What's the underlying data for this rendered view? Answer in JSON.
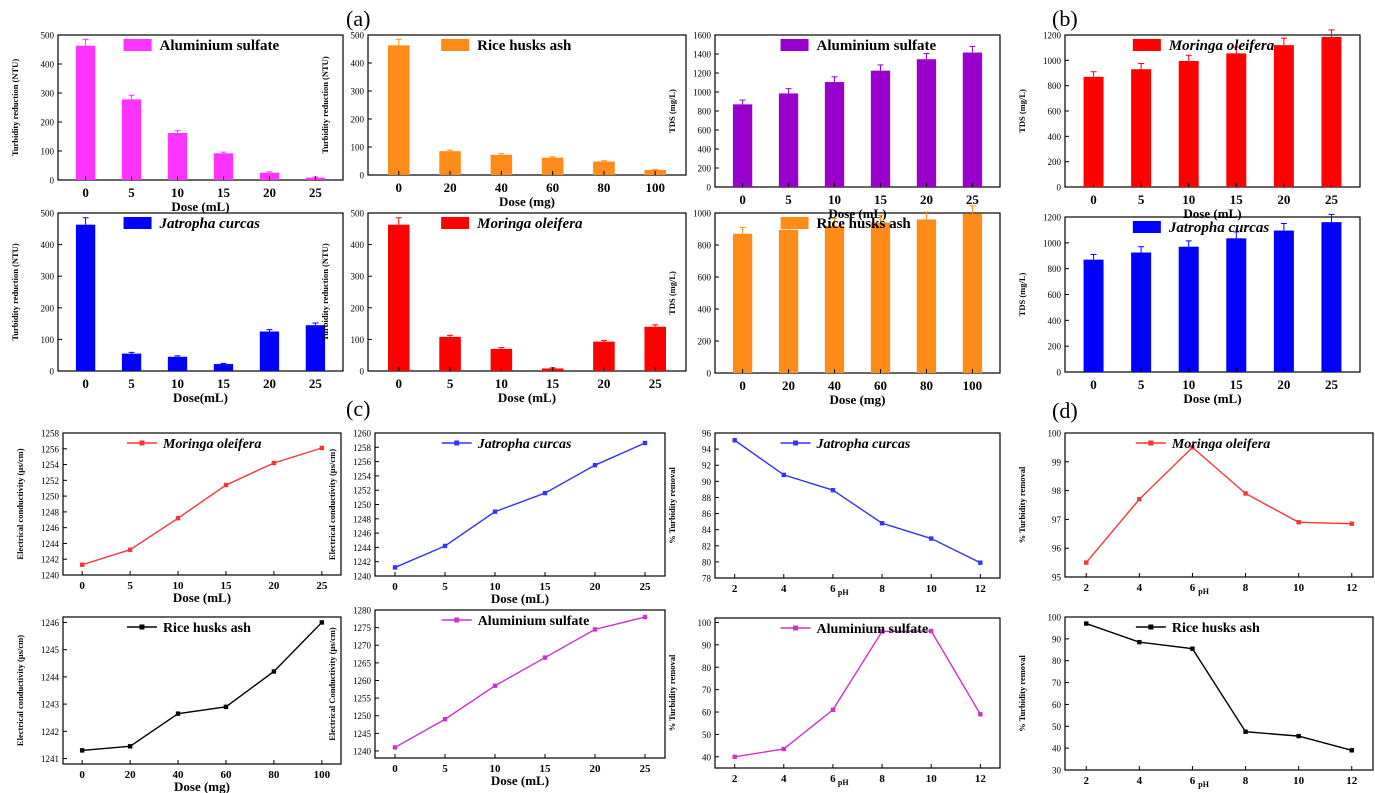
{
  "panel_labels": [
    "(a)",
    "(b)",
    "(c)",
    "(d)"
  ],
  "chart_data": [
    {
      "type": "bar",
      "color": "#ff33ff",
      "legend": "Aluminium sulfate",
      "legend_italic": false,
      "ylabel": "Turbidity reduction (NTU)",
      "xlabel": "Dose (mL)",
      "categories": [
        "0",
        "5",
        "10",
        "15",
        "20",
        "25"
      ],
      "values": [
        463,
        278,
        162,
        92,
        25,
        8
      ],
      "errors": [
        22,
        14,
        8,
        4,
        3,
        2
      ],
      "ylim": [
        0,
        500
      ],
      "yticks": [
        0,
        100,
        200,
        300,
        400,
        500
      ]
    },
    {
      "type": "bar",
      "color": "#ff8c1a",
      "legend": "Rice husks ash",
      "legend_italic": false,
      "ylabel": "Turbidity reduction (NTU)",
      "xlabel": "Dose (mg)",
      "categories": [
        "0",
        "20",
        "40",
        "60",
        "80",
        "100"
      ],
      "values": [
        463,
        85,
        72,
        62,
        48,
        18
      ],
      "errors": [
        22,
        4,
        4,
        3,
        3,
        2
      ],
      "ylim": [
        0,
        500
      ],
      "yticks": [
        0,
        100,
        200,
        300,
        400,
        500
      ]
    },
    {
      "type": "bar",
      "color": "#9900cc",
      "legend": "Aluminium sulfate",
      "legend_italic": false,
      "ylabel": "TDS (mg/L)",
      "xlabel": "Dose (mL)",
      "categories": [
        "0",
        "5",
        "10",
        "15",
        "20",
        "25"
      ],
      "values": [
        870,
        985,
        1105,
        1225,
        1345,
        1415
      ],
      "errors": [
        45,
        50,
        55,
        60,
        60,
        65
      ],
      "ylim": [
        0,
        1600
      ],
      "yticks": [
        0,
        200,
        400,
        600,
        800,
        1000,
        1200,
        1400,
        1600
      ]
    },
    {
      "type": "bar",
      "color": "#ff0000",
      "legend": "Moringa oleifera",
      "legend_italic": true,
      "ylabel": "TDS (mg/L)",
      "xlabel": "Dose (mL)",
      "categories": [
        "0",
        "5",
        "10",
        "15",
        "20",
        "25"
      ],
      "values": [
        870,
        930,
        995,
        1055,
        1120,
        1185
      ],
      "errors": [
        40,
        45,
        45,
        50,
        55,
        55
      ],
      "ylim": [
        0,
        1200
      ],
      "yticks": [
        0,
        200,
        400,
        600,
        800,
        1000,
        1200
      ]
    },
    {
      "type": "bar",
      "color": "#0000ff",
      "legend": "Jatropha curcas",
      "legend_italic": true,
      "ylabel": "Turbidity reduction (NTU)",
      "xlabel": "Dose(mL)",
      "categories": [
        "0",
        "5",
        "10",
        "15",
        "20",
        "25"
      ],
      "values": [
        463,
        55,
        45,
        22,
        125,
        145
      ],
      "errors": [
        22,
        4,
        3,
        2,
        6,
        7
      ],
      "ylim": [
        0,
        500
      ],
      "yticks": [
        0,
        100,
        200,
        300,
        400,
        500
      ]
    },
    {
      "type": "bar",
      "color": "#ff0000",
      "legend": "Moringa oleifera",
      "legend_italic": true,
      "ylabel": "Turbidity reduction (NTU)",
      "xlabel": "Dose (mL)",
      "categories": [
        "0",
        "5",
        "10",
        "15",
        "20",
        "25"
      ],
      "values": [
        463,
        108,
        70,
        8,
        93,
        140
      ],
      "errors": [
        22,
        5,
        4,
        2,
        4,
        6
      ],
      "ylim": [
        0,
        500
      ],
      "yticks": [
        0,
        100,
        200,
        300,
        400,
        500
      ]
    },
    {
      "type": "bar",
      "color": "#ff8c1a",
      "legend": "Rice husks ash",
      "legend_italic": false,
      "ylabel": "TDS (mg/L)",
      "xlabel": "Dose (mg)",
      "categories": [
        "0",
        "20",
        "40",
        "60",
        "80",
        "100"
      ],
      "values": [
        870,
        895,
        920,
        940,
        960,
        995
      ],
      "errors": [
        40,
        45,
        45,
        45,
        45,
        50
      ],
      "ylim": [
        0,
        1000
      ],
      "yticks": [
        0,
        200,
        400,
        600,
        800,
        1000
      ]
    },
    {
      "type": "bar",
      "color": "#0000ff",
      "legend": "Jatropha curcas",
      "legend_italic": true,
      "ylabel": "TDS (mg/L)",
      "xlabel": "Dose (mL)",
      "categories": [
        "0",
        "5",
        "10",
        "15",
        "20",
        "25"
      ],
      "values": [
        870,
        925,
        970,
        1035,
        1095,
        1160
      ],
      "errors": [
        40,
        45,
        45,
        50,
        55,
        60
      ],
      "ylim": [
        0,
        1200
      ],
      "yticks": [
        0,
        200,
        400,
        600,
        800,
        1000,
        1200
      ]
    },
    {
      "type": "line",
      "color": "#ff3333",
      "legend": "Moringa oleifera",
      "legend_italic": true,
      "ylabel": "Electrical conductivity (µs/cm)",
      "xlabel": "Dose (mL)",
      "x": [
        0,
        5,
        10,
        15,
        20,
        25
      ],
      "y": [
        1241.3,
        1243.2,
        1247.2,
        1251.4,
        1254.2,
        1256.1
      ],
      "xlim": [
        -2,
        27
      ],
      "xticks": [
        0,
        5,
        10,
        15,
        20,
        25
      ],
      "ylim": [
        1240,
        1258
      ],
      "yticks": [
        1240,
        1242,
        1244,
        1246,
        1248,
        1250,
        1252,
        1254,
        1256,
        1258
      ]
    },
    {
      "type": "line",
      "color": "#3333ff",
      "legend": "Jatropha curcas",
      "legend_italic": true,
      "ylabel": "Electrical conductivity (µs/cm)",
      "xlabel": "Dose (mL)",
      "x": [
        0,
        5,
        10,
        15,
        20,
        25
      ],
      "y": [
        1241.2,
        1244.2,
        1249.0,
        1251.6,
        1255.5,
        1258.6
      ],
      "xlim": [
        -2,
        27
      ],
      "xticks": [
        0,
        5,
        10,
        15,
        20,
        25
      ],
      "ylim": [
        1240,
        1260
      ],
      "yticks": [
        1240,
        1242,
        1244,
        1246,
        1248,
        1250,
        1252,
        1254,
        1256,
        1258,
        1260
      ]
    },
    {
      "type": "line",
      "color": "#3333ff",
      "legend": "Jatropha curcas",
      "legend_italic": true,
      "ylabel": "% Turbidity removal",
      "xlabel": "pH",
      "x": [
        2,
        4,
        6,
        8,
        10,
        12
      ],
      "y": [
        95.1,
        90.8,
        88.9,
        84.8,
        82.9,
        79.9
      ],
      "xlim": [
        1.2,
        12.8
      ],
      "xticks": [
        2,
        4,
        6,
        8,
        10,
        12
      ],
      "ylim": [
        78,
        96
      ],
      "yticks": [
        78,
        80,
        82,
        84,
        86,
        88,
        90,
        92,
        94,
        96
      ]
    },
    {
      "type": "line",
      "color": "#ff3333",
      "legend": "Moringa oleifera",
      "legend_italic": true,
      "ylabel": "% Turbidity removal",
      "xlabel": "pH",
      "x": [
        2,
        4,
        6,
        8,
        10,
        12
      ],
      "y": [
        95.5,
        97.7,
        99.5,
        97.9,
        96.9,
        96.85
      ],
      "xlim": [
        1.2,
        12.8
      ],
      "xticks": [
        2,
        4,
        6,
        8,
        10,
        12
      ],
      "ylim": [
        95,
        100
      ],
      "yticks": [
        95,
        96,
        97,
        98,
        99,
        100
      ]
    },
    {
      "type": "line",
      "color": "#000000",
      "legend": "Rice husks ash",
      "legend_italic": false,
      "ylabel": "Electrical conductivity (µs/cm)",
      "xlabel": "Dose (mg)",
      "x": [
        0,
        20,
        40,
        60,
        80,
        100
      ],
      "y": [
        1241.3,
        1241.45,
        1242.65,
        1242.9,
        1244.2,
        1246.0
      ],
      "xlim": [
        -8,
        108
      ],
      "xticks": [
        0,
        20,
        40,
        60,
        80,
        100
      ],
      "ylim": [
        1240.8,
        1246.2
      ],
      "yticks": [
        1241,
        1242,
        1243,
        1244,
        1245,
        1246
      ]
    },
    {
      "type": "line",
      "color": "#cc33cc",
      "legend": "Aluminium sulfate",
      "legend_italic": false,
      "ylabel": "Electrical Conductivity (µs/cm)",
      "xlabel": "Dose (mL)",
      "x": [
        0,
        5,
        10,
        15,
        20,
        25
      ],
      "y": [
        1241,
        1249,
        1258.5,
        1266.5,
        1274.5,
        1278
      ],
      "xlim": [
        -2,
        27
      ],
      "xticks": [
        0,
        5,
        10,
        15,
        20,
        25
      ],
      "ylim": [
        1238,
        1280
      ],
      "yticks": [
        1240,
        1245,
        1250,
        1255,
        1260,
        1265,
        1270,
        1275,
        1280
      ]
    },
    {
      "type": "line",
      "color": "#cc33cc",
      "legend": "Aluminium sulfate",
      "legend_italic": false,
      "ylabel": "% Turbidity removal",
      "xlabel": "pH",
      "x": [
        2,
        4,
        6,
        8,
        10,
        12
      ],
      "y": [
        40,
        43.5,
        61,
        96,
        96.2,
        59
      ],
      "xlim": [
        1.2,
        12.8
      ],
      "xticks": [
        2,
        4,
        6,
        8,
        10,
        12
      ],
      "ylim": [
        35,
        102
      ],
      "yticks": [
        40,
        50,
        60,
        70,
        80,
        90,
        100
      ]
    },
    {
      "type": "line",
      "color": "#000000",
      "legend": "Rice husks ash",
      "legend_italic": false,
      "ylabel": "% Turbidity removal",
      "xlabel": "pH",
      "x": [
        2,
        4,
        6,
        8,
        10,
        12
      ],
      "y": [
        97,
        88.5,
        85.5,
        47.5,
        45.5,
        39
      ],
      "xlim": [
        1.2,
        12.8
      ],
      "xticks": [
        2,
        4,
        6,
        8,
        10,
        12
      ],
      "ylim": [
        30,
        100
      ],
      "yticks": [
        30,
        40,
        50,
        60,
        70,
        80,
        90,
        100
      ]
    }
  ]
}
